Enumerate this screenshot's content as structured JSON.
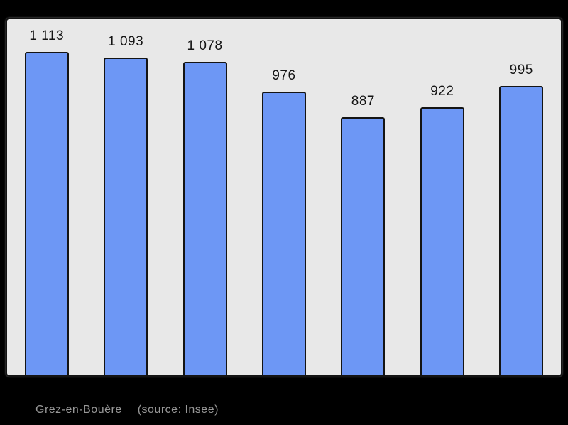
{
  "chart_data": {
    "type": "bar",
    "values": [
      1113,
      1093,
      1078,
      976,
      887,
      922,
      995
    ],
    "labels": [
      "1 113",
      "1 093",
      "1 078",
      "976",
      "887",
      "922",
      "995"
    ],
    "title": "",
    "xlabel": "",
    "ylabel": "",
    "ylim": [
      0,
      1225
    ],
    "grid": false,
    "legend": "none",
    "bar_fill": "#6d97f5",
    "bar_border": "#141414",
    "panel_bg": "#e8e8e8",
    "panel_border": "#141414",
    "page_bg": "#000000",
    "value_label_color": "#141414"
  },
  "caption": {
    "title": "Grez-en-Bouère",
    "source": "(source: Insee)",
    "color": "#989898"
  }
}
